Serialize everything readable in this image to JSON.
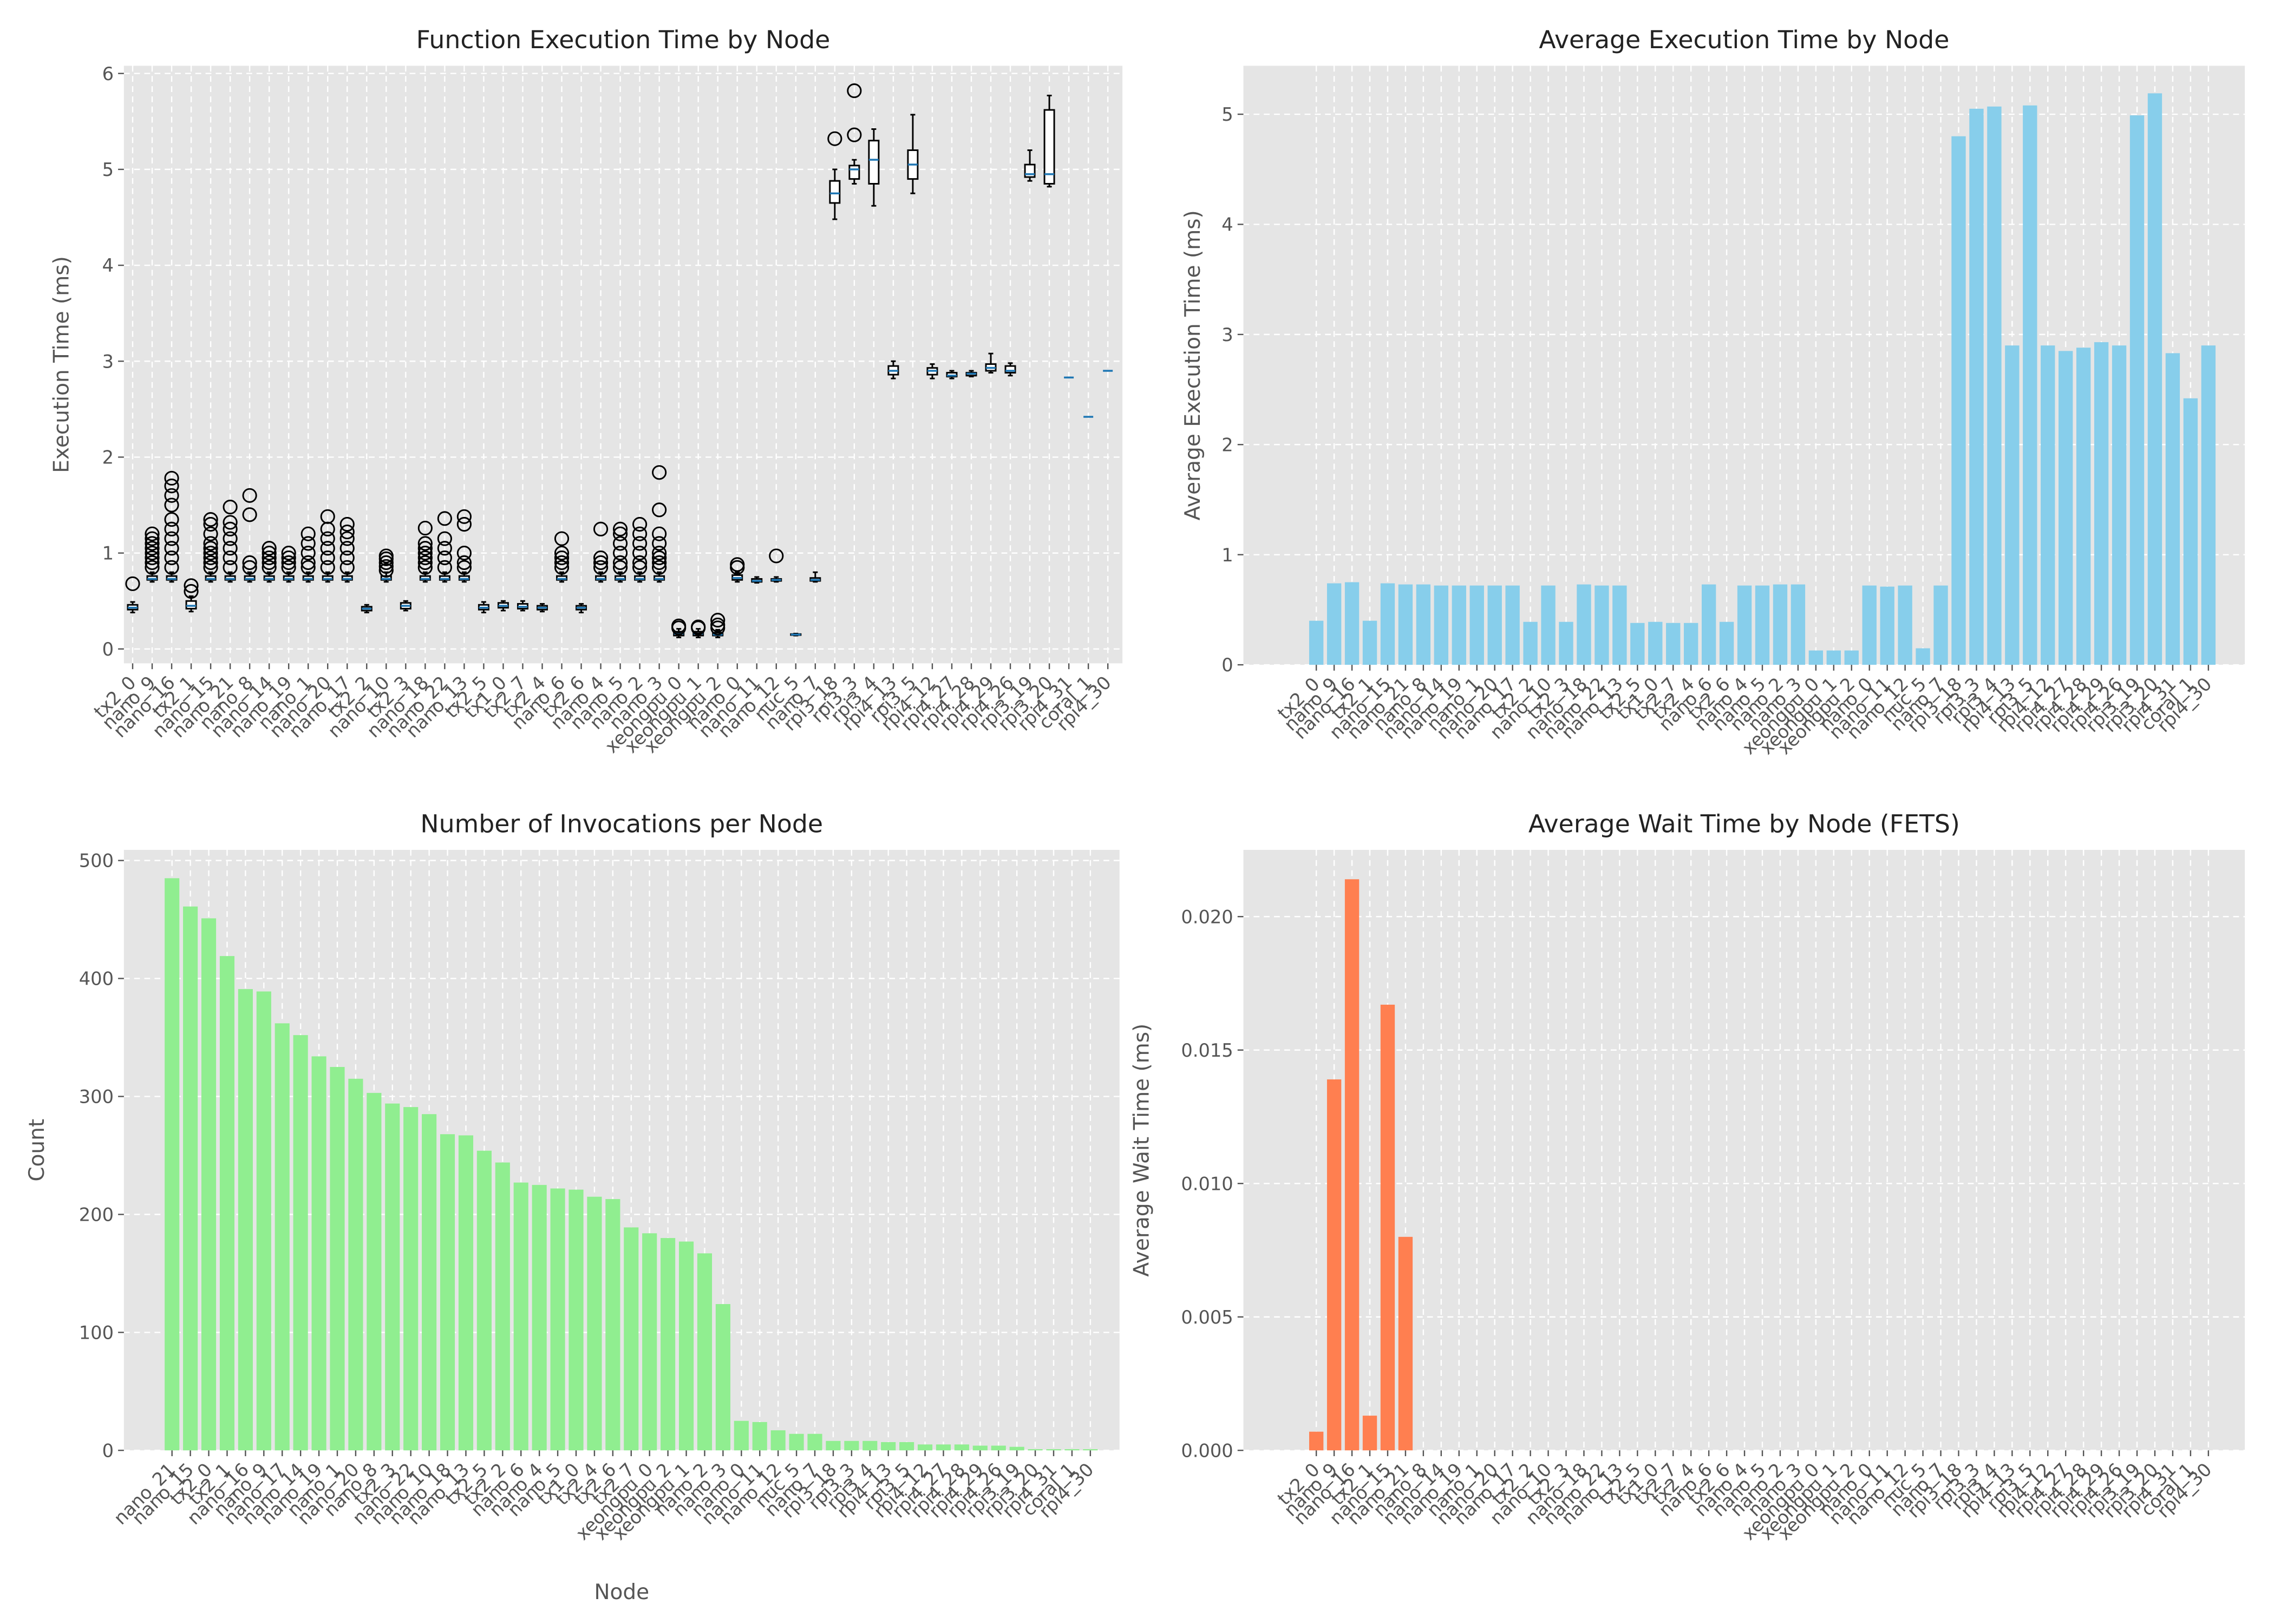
{
  "chart_data": [
    {
      "type": "box",
      "title": "Function Execution Time by Node",
      "ylabel": "Execution Time (ms)",
      "categories": [
        "tx2_0",
        "nano_9",
        "nano_16",
        "tx2_1",
        "nano_15",
        "nano_21",
        "nano_8",
        "nano_14",
        "nano_19",
        "nano_1",
        "nano_20",
        "nano_17",
        "tx2_2",
        "nano_10",
        "tx2_3",
        "nano_18",
        "nano_22",
        "nano_13",
        "tx2_5",
        "tx1_0",
        "tx2_7",
        "tx2_4",
        "nano_6",
        "tx2_6",
        "nano_4",
        "nano_5",
        "nano_2",
        "nano_3",
        "xeongpu_0",
        "xeongpu_1",
        "xeongpu_2",
        "nano_0",
        "nano_11",
        "nano_12",
        "nuc_5",
        "nano_7",
        "rpi3_18",
        "rpi3_3",
        "rpi3_4",
        "rpi4_13",
        "rpi3_5",
        "rpi4_12",
        "rpi4_27",
        "rpi4_28",
        "rpi4_29",
        "rpi4_26",
        "rpi3_19",
        "rpi3_20",
        "rpi4_31",
        "coral_1",
        "rpi4_30"
      ],
      "boxes": [
        [
          0.38,
          0.41,
          0.43,
          0.46,
          0.49
        ],
        [
          0.7,
          0.72,
          0.73,
          0.76,
          0.8
        ],
        [
          0.7,
          0.72,
          0.73,
          0.76,
          0.8
        ],
        [
          0.39,
          0.42,
          0.45,
          0.5,
          0.55
        ],
        [
          0.7,
          0.72,
          0.73,
          0.76,
          0.8
        ],
        [
          0.7,
          0.72,
          0.73,
          0.76,
          0.8
        ],
        [
          0.7,
          0.72,
          0.73,
          0.76,
          0.8
        ],
        [
          0.7,
          0.72,
          0.73,
          0.76,
          0.8
        ],
        [
          0.7,
          0.72,
          0.73,
          0.76,
          0.8
        ],
        [
          0.7,
          0.72,
          0.73,
          0.76,
          0.8
        ],
        [
          0.7,
          0.72,
          0.73,
          0.76,
          0.8
        ],
        [
          0.7,
          0.72,
          0.73,
          0.76,
          0.8
        ],
        [
          0.38,
          0.4,
          0.42,
          0.44,
          0.46
        ],
        [
          0.7,
          0.72,
          0.73,
          0.76,
          0.8
        ],
        [
          0.4,
          0.42,
          0.45,
          0.48,
          0.5
        ],
        [
          0.7,
          0.72,
          0.73,
          0.76,
          0.8
        ],
        [
          0.7,
          0.72,
          0.73,
          0.76,
          0.8
        ],
        [
          0.7,
          0.72,
          0.73,
          0.76,
          0.8
        ],
        [
          0.38,
          0.41,
          0.43,
          0.46,
          0.49
        ],
        [
          0.4,
          0.43,
          0.45,
          0.48,
          0.5
        ],
        [
          0.4,
          0.42,
          0.44,
          0.47,
          0.5
        ],
        [
          0.39,
          0.41,
          0.43,
          0.45,
          0.47
        ],
        [
          0.7,
          0.72,
          0.73,
          0.76,
          0.8
        ],
        [
          0.38,
          0.41,
          0.43,
          0.45,
          0.47
        ],
        [
          0.7,
          0.72,
          0.73,
          0.76,
          0.8
        ],
        [
          0.7,
          0.72,
          0.73,
          0.76,
          0.8
        ],
        [
          0.7,
          0.72,
          0.73,
          0.76,
          0.8
        ],
        [
          0.7,
          0.72,
          0.73,
          0.76,
          0.8
        ],
        [
          0.12,
          0.14,
          0.16,
          0.18,
          0.21
        ],
        [
          0.12,
          0.14,
          0.16,
          0.18,
          0.21
        ],
        [
          0.12,
          0.14,
          0.15,
          0.17,
          0.2
        ],
        [
          0.7,
          0.72,
          0.74,
          0.77,
          0.8
        ],
        [
          0.69,
          0.7,
          0.71,
          0.73,
          0.75
        ],
        [
          0.7,
          0.71,
          0.72,
          0.73,
          0.75
        ],
        [
          0.14,
          0.145,
          0.15,
          0.155,
          0.16
        ],
        [
          0.7,
          0.71,
          0.72,
          0.74,
          0.8
        ],
        [
          4.48,
          4.65,
          4.75,
          4.88,
          5.0
        ],
        [
          4.85,
          4.9,
          5.0,
          5.04,
          5.1
        ],
        [
          4.62,
          4.85,
          5.1,
          5.3,
          5.42
        ],
        [
          2.82,
          2.86,
          2.9,
          2.95,
          3.0
        ],
        [
          4.75,
          4.9,
          5.05,
          5.2,
          5.57
        ],
        [
          2.82,
          2.86,
          2.9,
          2.93,
          2.97
        ],
        [
          2.82,
          2.84,
          2.85,
          2.88,
          2.9
        ],
        [
          2.84,
          2.85,
          2.87,
          2.88,
          2.9
        ],
        [
          2.88,
          2.9,
          2.93,
          2.97,
          3.08
        ],
        [
          2.85,
          2.88,
          2.9,
          2.95,
          2.98
        ],
        [
          4.88,
          4.92,
          4.95,
          5.05,
          5.2
        ],
        [
          4.82,
          4.85,
          4.95,
          5.62,
          5.77
        ],
        [
          2.83,
          2.83,
          2.83,
          2.83,
          2.83
        ],
        [
          2.42,
          2.42,
          2.42,
          2.42,
          2.42
        ],
        [
          2.9,
          2.9,
          2.9,
          2.9,
          2.9
        ]
      ],
      "fliers": [
        [
          0.68
        ],
        [
          0.85,
          0.9,
          0.95,
          1.0,
          1.05,
          1.1,
          1.15,
          1.2
        ],
        [
          0.85,
          0.95,
          1.05,
          1.15,
          1.25,
          1.35,
          1.5,
          1.6,
          1.7,
          1.78
        ],
        [
          0.6,
          0.66
        ],
        [
          0.85,
          0.9,
          0.95,
          1.0,
          1.05,
          1.1,
          1.2,
          1.3,
          1.35
        ],
        [
          0.85,
          0.95,
          1.05,
          1.15,
          1.25,
          1.32,
          1.48
        ],
        [
          0.85,
          0.9,
          1.4,
          1.6
        ],
        [
          0.85,
          0.9,
          0.95,
          1.0,
          1.05
        ],
        [
          0.85,
          0.9,
          0.95,
          1.0
        ],
        [
          0.85,
          0.9,
          1.0,
          1.1,
          1.2
        ],
        [
          0.85,
          0.95,
          1.05,
          1.15,
          1.25,
          1.38
        ],
        [
          0.85,
          0.95,
          1.05,
          1.15,
          1.22,
          1.3
        ],
        [],
        [
          0.82,
          0.86,
          0.9,
          0.94,
          0.97
        ],
        [],
        [
          0.85,
          0.9,
          0.95,
          1.0,
          1.05,
          1.1,
          1.26
        ],
        [
          0.85,
          0.95,
          1.05,
          1.15,
          1.36
        ],
        [
          0.85,
          0.9,
          1.0,
          1.3,
          1.38
        ],
        [],
        [],
        [],
        [],
        [
          0.85,
          0.9,
          0.95,
          1.0,
          1.15
        ],
        [],
        [
          0.85,
          0.9,
          0.95,
          1.25
        ],
        [
          0.85,
          0.9,
          1.0,
          1.1,
          1.2,
          1.25
        ],
        [
          0.85,
          0.9,
          1.0,
          1.1,
          1.2,
          1.3
        ],
        [
          0.85,
          0.9,
          0.95,
          1.0,
          1.1,
          1.2,
          1.45,
          1.84
        ],
        [
          0.22,
          0.24
        ],
        [
          0.22,
          0.23
        ],
        [
          0.22,
          0.25,
          0.3
        ],
        [
          0.85,
          0.88
        ],
        [],
        [
          0.97
        ],
        [],
        [],
        [
          5.32
        ],
        [
          5.36,
          5.82
        ],
        [],
        [],
        [],
        [],
        [],
        [],
        [],
        [],
        [],
        [],
        [],
        [],
        []
      ],
      "box_color": "#000000",
      "median_color": "#1f77b4",
      "ylim": [
        -0.15,
        6.08
      ],
      "yticks": [
        0,
        1,
        2,
        3,
        4,
        5,
        6
      ],
      "grid": true
    },
    {
      "type": "bar",
      "title": "Average Execution Time by Node",
      "ylabel": "Average Execution Time (ms)",
      "categories": [
        "tx2_0",
        "nano_9",
        "nano_16",
        "tx2_1",
        "nano_15",
        "nano_21",
        "nano_8",
        "nano_14",
        "nano_19",
        "nano_1",
        "nano_20",
        "nano_17",
        "tx2_2",
        "nano_10",
        "tx2_3",
        "nano_18",
        "nano_22",
        "nano_13",
        "tx2_5",
        "tx1_0",
        "tx2_7",
        "tx2_4",
        "nano_6",
        "tx2_6",
        "nano_4",
        "nano_5",
        "nano_2",
        "nano_3",
        "xeongpu_0",
        "xeongpu_1",
        "xeongpu_2",
        "nano_0",
        "nano_11",
        "nano_12",
        "nuc_5",
        "nano_7",
        "rpi3_18",
        "rpi3_3",
        "rpi3_4",
        "rpi4_13",
        "rpi3_5",
        "rpi4_12",
        "rpi4_27",
        "rpi4_28",
        "rpi4_29",
        "rpi4_26",
        "rpi3_19",
        "rpi3_20",
        "rpi4_31",
        "coral_1",
        "rpi4_30"
      ],
      "values": [
        0.4,
        0.74,
        0.75,
        0.4,
        0.74,
        0.73,
        0.73,
        0.72,
        0.72,
        0.72,
        0.72,
        0.72,
        0.39,
        0.72,
        0.39,
        0.73,
        0.72,
        0.72,
        0.38,
        0.39,
        0.38,
        0.38,
        0.73,
        0.39,
        0.72,
        0.72,
        0.73,
        0.73,
        0.13,
        0.13,
        0.13,
        0.72,
        0.71,
        0.72,
        0.15,
        0.72,
        4.8,
        5.05,
        5.07,
        2.9,
        5.08,
        2.9,
        2.85,
        2.88,
        2.93,
        2.9,
        4.99,
        5.19,
        2.83,
        2.42,
        2.9
      ],
      "color": "#87ceeb",
      "ylim": [
        0,
        5.44
      ],
      "yticks": [
        0,
        1,
        2,
        3,
        4,
        5
      ],
      "grid": true
    },
    {
      "type": "bar",
      "title": "Number of Invocations per Node",
      "xlabel": "Node",
      "ylabel": "Count",
      "categories": [
        "nano_21",
        "nano_15",
        "tx2_0",
        "tx2_1",
        "nano_16",
        "nano_9",
        "nano_17",
        "nano_14",
        "nano_19",
        "nano_1",
        "nano_20",
        "nano_8",
        "tx2_3",
        "nano_22",
        "nano_10",
        "nano_18",
        "nano_13",
        "tx2_5",
        "tx2_2",
        "nano_6",
        "nano_4",
        "nano_5",
        "tx1_0",
        "tx2_4",
        "tx2_6",
        "tx2_7",
        "xeongpu_0",
        "xeongpu_2",
        "xeongpu_1",
        "nano_2",
        "nano_3",
        "nano_0",
        "nano_11",
        "nano_12",
        "nuc_5",
        "nano_7",
        "rpi3_18",
        "rpi3_3",
        "rpi3_4",
        "rpi4_13",
        "rpi3_5",
        "rpi4_12",
        "rpi4_27",
        "rpi4_28",
        "rpi4_29",
        "rpi4_26",
        "rpi3_19",
        "rpi3_20",
        "rpi4_31",
        "coral_1",
        "rpi4_30"
      ],
      "values": [
        485,
        461,
        451,
        419,
        391,
        389,
        362,
        352,
        334,
        325,
        315,
        303,
        294,
        291,
        285,
        268,
        267,
        254,
        244,
        227,
        225,
        222,
        221,
        215,
        213,
        189,
        184,
        180,
        177,
        167,
        124,
        25,
        24,
        17,
        14,
        14,
        8,
        8,
        8,
        7,
        7,
        5,
        5,
        5,
        4,
        4,
        3,
        1,
        1,
        1,
        1
      ],
      "color": "#90ee90",
      "ylim": [
        0,
        509
      ],
      "yticks": [
        0,
        100,
        200,
        300,
        400,
        500
      ],
      "grid": true
    },
    {
      "type": "bar",
      "title": "Average Wait Time by Node (FETS)",
      "ylabel": "Average Wait Time (ms)",
      "categories": [
        "tx2_0",
        "nano_9",
        "nano_16",
        "tx2_1",
        "nano_15",
        "nano_21",
        "nano_8",
        "nano_14",
        "nano_19",
        "nano_1",
        "nano_20",
        "nano_17",
        "tx2_2",
        "nano_10",
        "tx2_3",
        "nano_18",
        "nano_22",
        "nano_13",
        "tx2_5",
        "tx1_0",
        "tx2_7",
        "tx2_4",
        "nano_6",
        "tx2_6",
        "nano_4",
        "nano_5",
        "nano_2",
        "nano_3",
        "xeongpu_0",
        "xeongpu_1",
        "xeongpu_2",
        "nano_0",
        "nano_11",
        "nano_12",
        "nuc_5",
        "nano_7",
        "rpi3_18",
        "rpi3_3",
        "rpi3_4",
        "rpi4_13",
        "rpi3_5",
        "rpi4_12",
        "rpi4_27",
        "rpi4_28",
        "rpi4_29",
        "rpi4_26",
        "rpi3_19",
        "rpi3_20",
        "rpi4_31",
        "coral_1",
        "rpi4_30"
      ],
      "values": [
        0.0007,
        0.0139,
        0.0214,
        0.0013,
        0.0167,
        0.008,
        0,
        0,
        0,
        0,
        0,
        0,
        0,
        0,
        0,
        0,
        0,
        0,
        0,
        0,
        0,
        0,
        0,
        0,
        0,
        0,
        0,
        0,
        0,
        0,
        0,
        0,
        0,
        0,
        0,
        0,
        0,
        0,
        0,
        0,
        0,
        0,
        0,
        0,
        0,
        0,
        0,
        0,
        0,
        0,
        0
      ],
      "color": "#ff7f50",
      "ylim": [
        0,
        0.0225
      ],
      "yticks": [
        {
          "value": 0,
          "label": "0.000"
        },
        {
          "value": 0.005,
          "label": "0.005"
        },
        {
          "value": 0.01,
          "label": "0.010"
        },
        {
          "value": 0.015,
          "label": "0.015"
        },
        {
          "value": 0.02,
          "label": "0.020"
        }
      ],
      "grid": true
    }
  ]
}
